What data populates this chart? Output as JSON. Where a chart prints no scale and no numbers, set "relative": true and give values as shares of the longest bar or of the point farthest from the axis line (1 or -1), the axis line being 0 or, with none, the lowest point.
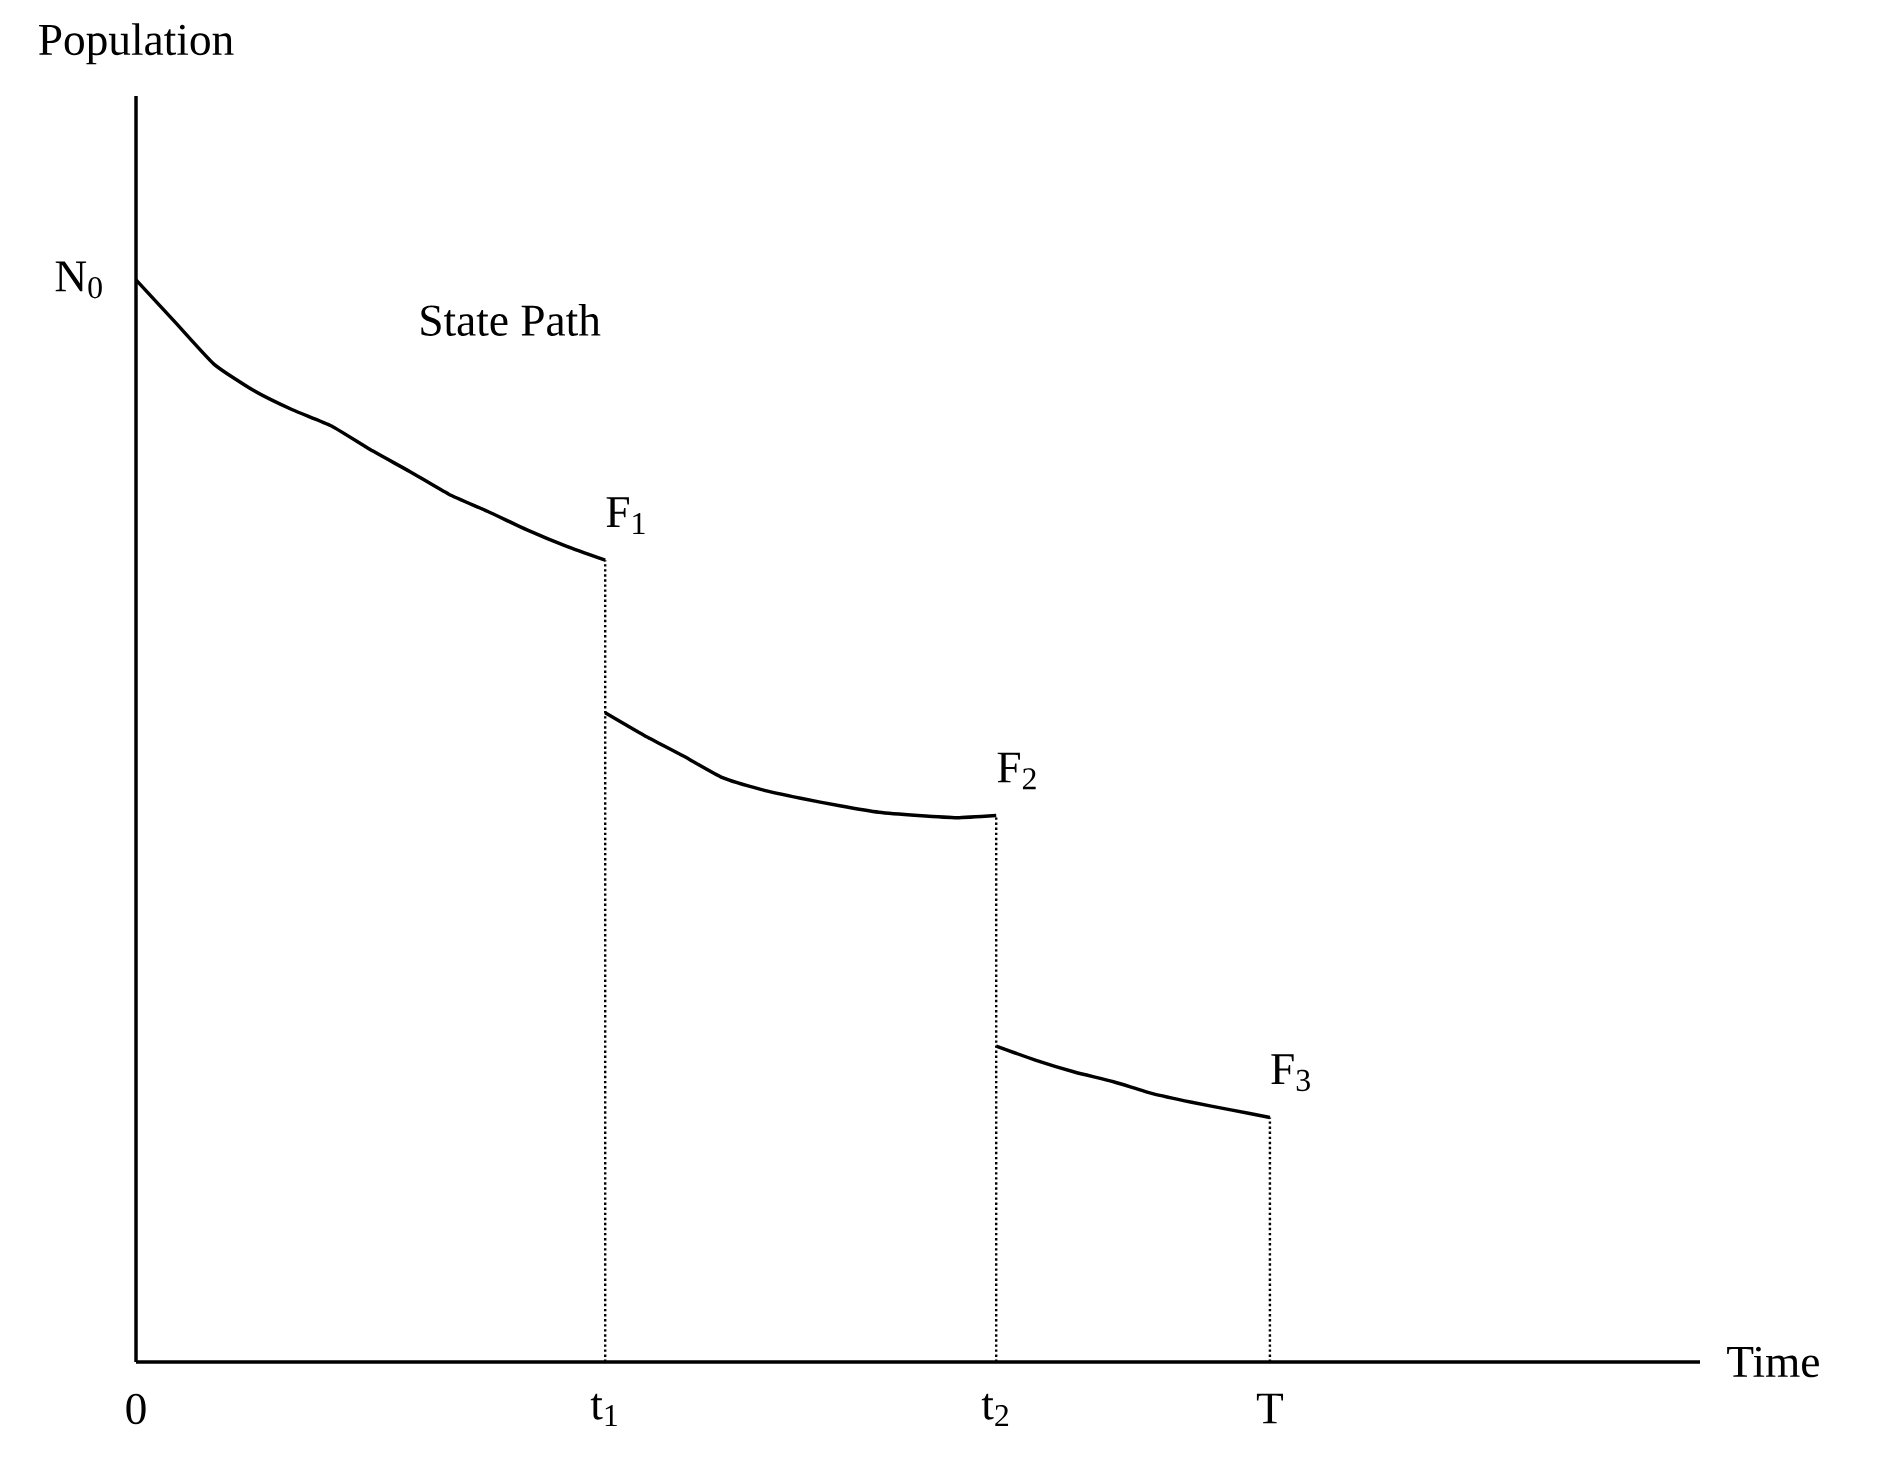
{
  "chart_data": {
    "type": "line",
    "relative": true,
    "xlabel": "Time",
    "ylabel": "Population",
    "categories": [
      "0",
      null,
      null,
      null,
      null,
      null,
      null,
      null,
      null,
      null,
      null,
      null,
      "t$_{1}$",
      null,
      null,
      null,
      null,
      null,
      null,
      null,
      null,
      null,
      "t$_{2}$",
      null,
      null,
      null,
      null,
      null,
      null,
      "T",
      null,
      null,
      null,
      null,
      null,
      null,
      null,
      null,
      null,
      null,
      null
    ],
    "series": [
      {
        "name": "State Path",
        "color": "#000000",
        "values": [
          1.0,
          0.961,
          0.922,
          0.898,
          0.88,
          0.865,
          0.843,
          0.823,
          0.802,
          0.786,
          0.769,
          0.754,
          0.741,
          null,
          null,
          null,
          null,
          null,
          null,
          null,
          null,
          null,
          null,
          null,
          null,
          null,
          null,
          null,
          null,
          null,
          null,
          null,
          null,
          null,
          null,
          null,
          null,
          null,
          null,
          null,
          null
        ]
      },
      {
        "color": "#000000",
        "values": [
          null,
          null,
          null,
          null,
          null,
          null,
          null,
          null,
          null,
          null,
          null,
          null,
          0.6,
          0.579,
          0.56,
          0.54,
          0.529,
          0.521,
          0.514,
          0.508,
          0.505,
          0.503,
          0.505,
          null,
          null,
          null,
          null,
          null,
          null,
          null,
          null,
          null,
          null,
          null,
          null,
          null,
          null,
          null,
          null,
          null,
          null
        ]
      },
      {
        "color": "#000000",
        "values": [
          null,
          null,
          null,
          null,
          null,
          null,
          null,
          null,
          null,
          null,
          null,
          null,
          null,
          null,
          null,
          null,
          null,
          null,
          null,
          null,
          null,
          null,
          0.292,
          0.279,
          0.268,
          0.259,
          0.248,
          0.24,
          0.233,
          0.226,
          null,
          null,
          null,
          null,
          null,
          null,
          null,
          null,
          null,
          null,
          null
        ]
      }
    ],
    "ref_lines": [
      {
        "axis": "x",
        "value": "t$_{1}$",
        "color": "#000000",
        "line_style": "dotted"
      },
      {
        "axis": "x",
        "value": "t$_{2}$",
        "color": "#000000",
        "line_style": "dotted"
      },
      {
        "axis": "x",
        "value": "T",
        "color": "#000000",
        "line_style": "dotted"
      }
    ],
    "annotations": [
      {
        "text": "N$_{0}$",
        "x": "0",
        "y": 1.0
      },
      {
        "text": "F$_{1}$",
        "x": "t$_{1}$",
        "y": 0.741
      },
      {
        "text": "F$_{2}$",
        "x": "t$_{2}$",
        "y": 0.505
      },
      {
        "text": "F$_{3}$",
        "x": "T",
        "y": 0.226
      }
    ]
  }
}
